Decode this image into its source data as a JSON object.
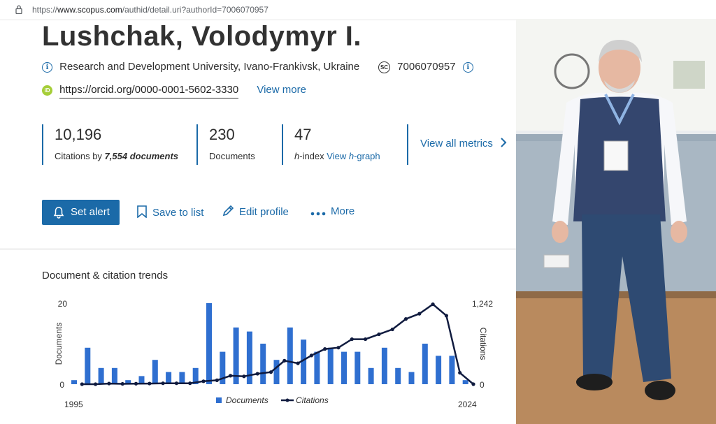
{
  "browser": {
    "url_prefix": "https://",
    "url_host": "www.scopus.com",
    "url_path": "/authid/detail.uri?authorId=7006070957"
  },
  "author": {
    "name": "Lushchak, Volodymyr I.",
    "affiliation": "Research and Development University, Ivano-Frankivsk, Ukraine",
    "scopus_id_badge": "SC",
    "scopus_id": "7006070957",
    "orcid_badge": "iD",
    "orcid": "https://orcid.org/0000-0001-5602-3330",
    "view_more": "View more"
  },
  "metrics": {
    "citations_value": "10,196",
    "citations_label_prefix": "Citations by ",
    "citations_label_docs": "7,554 documents",
    "documents_value": "230",
    "documents_label": "Documents",
    "hindex_value": "47",
    "hindex_label_h": "h",
    "hindex_label_rest": "-index ",
    "hindex_link_prefix": "View ",
    "hindex_link_h": "h",
    "hindex_link_suffix": "-graph",
    "view_all": "View all metrics"
  },
  "actions": {
    "set_alert": "Set alert",
    "save_to_list": "Save to list",
    "edit_profile": "Edit profile",
    "more": "More"
  },
  "colors": {
    "accent": "#1b6aa8",
    "bar": "#2f6fd0",
    "line": "#101b3f"
  },
  "chart_data": {
    "type": "bar",
    "title": "Document & citation trends",
    "x_start_label": "1995",
    "x_end_label": "2024",
    "ylabel": "Documents",
    "y2label": "Citations",
    "ylim": [
      0,
      20
    ],
    "y2lim": [
      0,
      1242
    ],
    "y_ticks": [
      "20",
      "0"
    ],
    "y2_ticks": [
      "1,242",
      "0"
    ],
    "legend": [
      "Documents",
      "Citations"
    ],
    "legend_position": "bottom",
    "years": [
      1995,
      1996,
      1997,
      1998,
      1999,
      2000,
      2001,
      2002,
      2003,
      2004,
      2005,
      2006,
      2007,
      2008,
      2009,
      2010,
      2011,
      2012,
      2013,
      2014,
      2015,
      2016,
      2017,
      2018,
      2019,
      2020,
      2021,
      2022,
      2023,
      2024
    ],
    "series": [
      {
        "name": "Documents",
        "type": "bar",
        "values": [
          1,
          9,
          4,
          4,
          1,
          2,
          6,
          3,
          3,
          4,
          20,
          8,
          14,
          13,
          10,
          6,
          14,
          11,
          8,
          9,
          8,
          8,
          4,
          9,
          4,
          3,
          10,
          7,
          7,
          1
        ]
      },
      {
        "name": "Citations",
        "type": "line",
        "values": [
          0,
          0,
          10,
          5,
          8,
          10,
          14,
          14,
          14,
          45,
          60,
          130,
          120,
          160,
          185,
          360,
          320,
          440,
          540,
          560,
          690,
          690,
          765,
          840,
          1000,
          1080,
          1225,
          1050,
          175,
          0
        ]
      }
    ]
  }
}
